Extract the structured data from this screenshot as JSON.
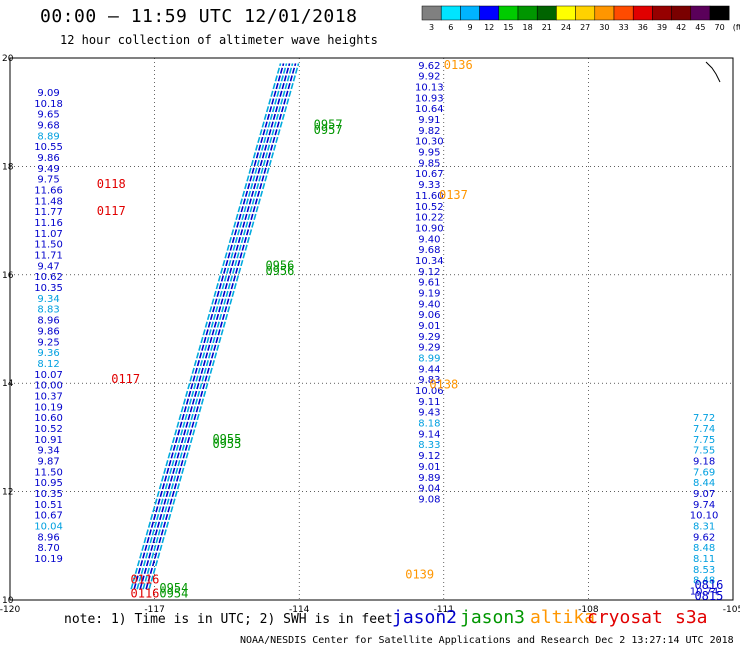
{
  "header": {
    "title": "00:00 – 11:59 UTC 12/01/2018",
    "subtitle": "12 hour collection of altimeter wave heights"
  },
  "colorbar": {
    "labels": [
      "3",
      "6",
      "9",
      "12",
      "15",
      "18",
      "21",
      "24",
      "27",
      "30",
      "33",
      "36",
      "39",
      "42",
      "45",
      "70",
      "(ft)"
    ],
    "colors": [
      "#808080",
      "#00e5ff",
      "#00b4ff",
      "#0000ff",
      "#00cc00",
      "#009600",
      "#006400",
      "#ffff00",
      "#ffd200",
      "#ff9600",
      "#ff4b00",
      "#e10000",
      "#960000",
      "#7a0000",
      "#5a005a",
      "#000000"
    ]
  },
  "legend": {
    "note": "note: 1) Time is in UTC; 2) SWH is in feet",
    "credit": "NOAA/NESDIS Center for Satellite Applications and Research   Dec  2 13:27:14 UTC 2018",
    "satellites": [
      {
        "name": "jason2",
        "color": "#0000cc"
      },
      {
        "name": "jason3",
        "color": "#009600"
      },
      {
        "name": "altika",
        "color": "#ff9600"
      },
      {
        "name": "cryosat",
        "color": "#e10000"
      },
      {
        "name": "s3a",
        "color": "#e10000"
      }
    ]
  },
  "chart_data": {
    "type": "scatter",
    "title": "00:00 – 11:59 UTC 12/01/2018",
    "xlim": [
      -120,
      -105
    ],
    "ylim": [
      10,
      20
    ],
    "x_ticks": [
      "-120",
      "-117",
      "-114",
      "-111",
      "-108",
      "-105"
    ],
    "y_ticks": [
      "10",
      "12",
      "14",
      "16",
      "18",
      "20"
    ],
    "grid": true,
    "tracks": [
      {
        "name": "track-a",
        "color": "#0000cc",
        "x": -119.2,
        "y_start": 19.3,
        "y_step": -0.2,
        "values": [
          "9.09",
          "10.18",
          "9.65",
          "9.68",
          "8.89",
          "10.55",
          "9.86",
          "9.49",
          "9.75",
          "11.66",
          "11.48",
          "11.77",
          "11.16",
          "11.07",
          "11.50",
          "11.71",
          "9.47",
          "10.62",
          "10.35",
          "9.34",
          "8.83",
          "8.96",
          "9.86",
          "9.25",
          "9.36",
          "8.12",
          "10.07",
          "10.00",
          "10.37",
          "10.19",
          "10.60",
          "10.52",
          "10.91",
          "9.34",
          "9.87",
          "11.50",
          "10.95",
          "10.35",
          "10.51",
          "10.67",
          "10.04",
          "8.96",
          "8.70",
          "10.19"
        ],
        "light": [
          4,
          19,
          20,
          24,
          25,
          40
        ]
      },
      {
        "name": "track-b",
        "color": "#0000cc",
        "x": -111.3,
        "y_start": 19.8,
        "y_step": -0.2,
        "values": [
          "9.62",
          "9.92",
          "10.13",
          "10.93",
          "10.64",
          "9.91",
          "9.82",
          "10.30",
          "9.95",
          "9.85",
          "10.67",
          "9.33",
          "11.60",
          "10.52",
          "10.22",
          "10.90",
          "9.40",
          "9.68",
          "10.34",
          "9.12",
          "9.61",
          "9.19",
          "9.40",
          "9.06",
          "9.01",
          "9.29",
          "9.29",
          "8.99",
          "9.44",
          "9.83",
          "10.06",
          "9.11",
          "9.43",
          "8.18",
          "9.14",
          "8.33",
          "9.12",
          "9.01",
          "9.89",
          "9.04",
          "9.08"
        ],
        "light": [
          27,
          33,
          35
        ]
      },
      {
        "name": "track-c",
        "color": "#0000cc",
        "x": -105.6,
        "y_start": 13.3,
        "y_step": -0.2,
        "values": [
          "7.72",
          "7.74",
          "7.75",
          "7.55",
          "9.18",
          "7.69",
          "8.44",
          "9.07",
          "9.74",
          "10.10",
          "8.31",
          "9.62",
          "8.48",
          "8.11",
          "8.53",
          "8.48",
          "10.74"
        ],
        "light": [
          0,
          1,
          2,
          3,
          5,
          6,
          10,
          12,
          13,
          14,
          15
        ]
      }
    ],
    "diagonal_track": {
      "color": "#00aadd",
      "x_start": -117.3,
      "y_start": 10.2,
      "x_end": -114.2,
      "y_end": 19.9
    },
    "time_labels": [
      {
        "text": "0136",
        "x": -110.7,
        "y": 19.8,
        "color": "#ff9600"
      },
      {
        "text": "0137",
        "x": -110.8,
        "y": 17.4,
        "color": "#ff9600"
      },
      {
        "text": "0138",
        "x": -111.0,
        "y": 13.9,
        "color": "#ff9600"
      },
      {
        "text": "0139",
        "x": -111.5,
        "y": 10.4,
        "color": "#ff9600"
      },
      {
        "text": "0118",
        "x": -117.9,
        "y": 17.6,
        "color": "#e10000"
      },
      {
        "text": "0117",
        "x": -117.9,
        "y": 17.1,
        "color": "#e10000"
      },
      {
        "text": "0117",
        "x": -117.6,
        "y": 14.0,
        "color": "#e10000"
      },
      {
        "text": "0116",
        "x": -117.2,
        "y": 10.3,
        "color": "#e10000"
      },
      {
        "text": "0116",
        "x": -117.2,
        "y": 10.05,
        "color": "#e10000"
      },
      {
        "text": "0957",
        "x": -113.4,
        "y": 18.7,
        "color": "#009600"
      },
      {
        "text": "0957",
        "x": -113.4,
        "y": 18.6,
        "color": "#009600"
      },
      {
        "text": "0956",
        "x": -114.4,
        "y": 16.1,
        "color": "#009600"
      },
      {
        "text": "0956",
        "x": -114.4,
        "y": 16.0,
        "color": "#009600"
      },
      {
        "text": "0955",
        "x": -115.5,
        "y": 12.9,
        "color": "#009600"
      },
      {
        "text": "0955",
        "x": -115.5,
        "y": 12.8,
        "color": "#009600"
      },
      {
        "text": "0954",
        "x": -116.6,
        "y": 10.15,
        "color": "#009600"
      },
      {
        "text": "0954",
        "x": -116.6,
        "y": 10.05,
        "color": "#009600"
      },
      {
        "text": "0816",
        "x": -105.5,
        "y": 10.2,
        "color": "#0000cc"
      },
      {
        "text": "0815",
        "x": -105.5,
        "y": 10.0,
        "color": "#0000cc"
      }
    ]
  }
}
